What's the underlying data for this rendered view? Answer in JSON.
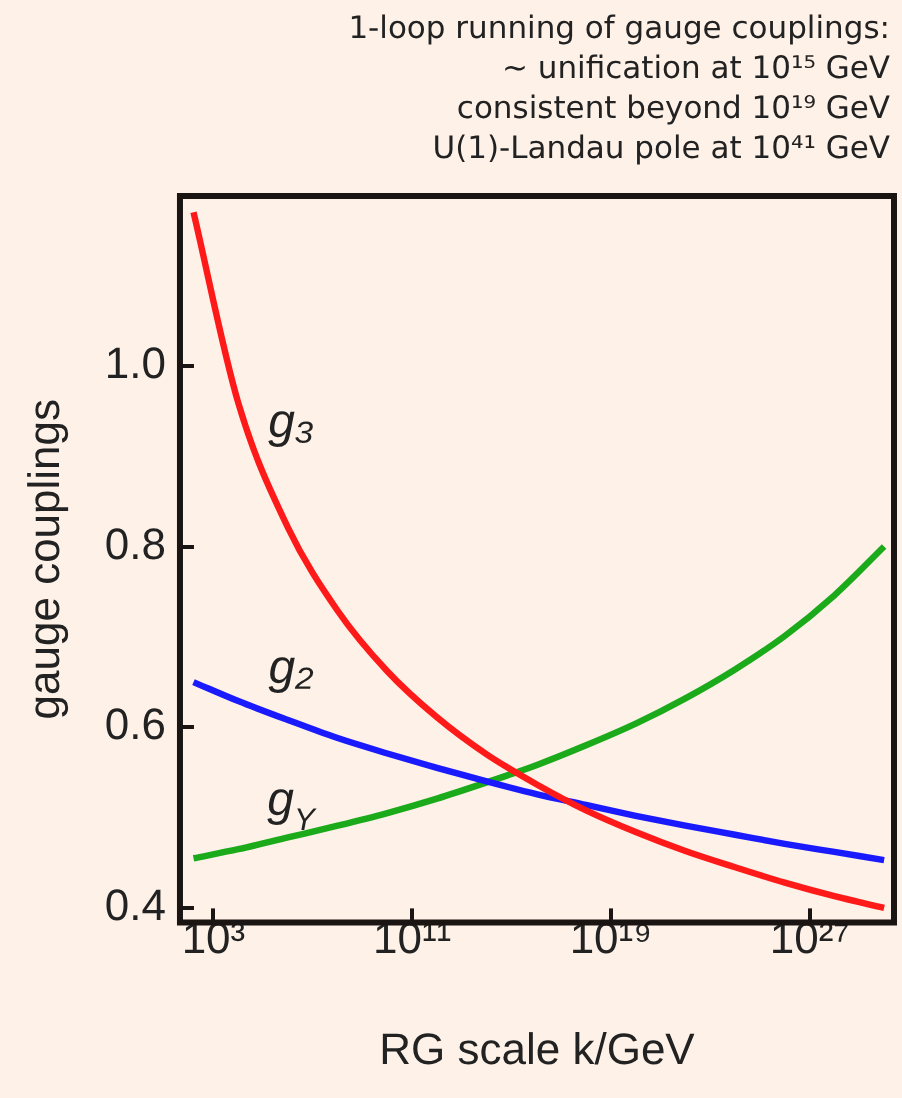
{
  "chart_data": {
    "type": "line",
    "title": "1-loop running of gauge couplings:\n~ unification at 10¹⁵ GeV\nconsistent beyond 10¹⁹ GeV\nU(1)-Landau pole at 10⁴¹ GeV",
    "xlabel": "RG scale k/GeV",
    "ylabel": "gauge couplings",
    "log": "x",
    "x": [
      158,
      10000.0,
      1000000.0,
      100000000.0,
      10000000000.0,
      1000000000000.0,
      100000000000000.0,
      1e+16,
      1e+18,
      1e+20,
      1e+22,
      1e+24,
      1e+26,
      1e+28,
      1e+30
    ],
    "series": [
      {
        "name": "g₃",
        "color": "#ff1a1a",
        "values": [
          1.17,
          0.959,
          0.821,
          0.729,
          0.662,
          0.611,
          0.57,
          0.537,
          0.508,
          0.484,
          0.463,
          0.445,
          0.428,
          0.413,
          0.4
        ]
      },
      {
        "name": "g₂",
        "color": "#1a1aff",
        "values": [
          0.65,
          0.629,
          0.608,
          0.588,
          0.571,
          0.555,
          0.54,
          0.526,
          0.514,
          0.502,
          0.491,
          0.481,
          0.471,
          0.462,
          0.453
        ]
      },
      {
        "name": "g$_{Y}$",
        "color": "#1aaa1a",
        "values": [
          0.455,
          0.465,
          0.478,
          0.491,
          0.505,
          0.521,
          0.539,
          0.558,
          0.58,
          0.604,
          0.632,
          0.664,
          0.701,
          0.746,
          0.8
        ]
      }
    ],
    "xlim": [
      45,
      2.5e+30
    ],
    "xticks": [
      {
        "value": 1000.0,
        "label": "10³"
      },
      {
        "value": 100000000000.0,
        "label": "10¹¹"
      },
      {
        "value": 1e+19,
        "label": "10¹⁹"
      },
      {
        "value": 1e+27,
        "label": "10²⁷"
      }
    ],
    "ylim": [
      0.384,
      1.188
    ],
    "yticks": [
      0.4,
      0.6,
      0.8,
      {
        "value": 1,
        "label": "1.0"
      }
    ],
    "grid": false,
    "legend": false,
    "marker": "none",
    "line_style": "solid"
  }
}
